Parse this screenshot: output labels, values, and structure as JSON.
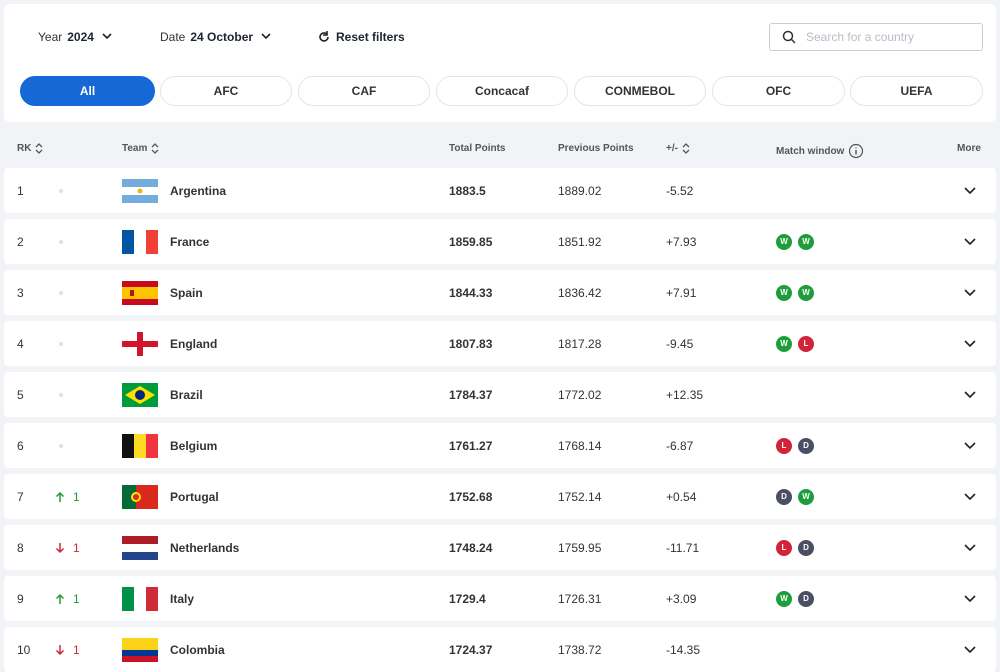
{
  "filters": {
    "year_label": "Year",
    "year": "2024",
    "date_label": "Date",
    "date": "24 October",
    "reset": "Reset filters",
    "search_placeholder": "Search for a country"
  },
  "tabs": [
    "All",
    "AFC",
    "CAF",
    "Concacaf",
    "CONMEBOL",
    "OFC",
    "UEFA"
  ],
  "table": {
    "columns": [
      "RK",
      "Team",
      "Total Points",
      "Previous Points",
      "+/-",
      "Match window",
      "More"
    ],
    "rows": [
      {
        "rank": 1,
        "team": "Argentina",
        "total": 1883.5,
        "previous": 1889.02,
        "diff": "-5.52",
        "matches": []
      },
      {
        "rank": 2,
        "team": "France",
        "total": 1859.85,
        "previous": 1851.92,
        "diff": "+7.93",
        "matches": [
          "W",
          "W"
        ]
      },
      {
        "rank": 3,
        "team": "Spain",
        "total": 1844.33,
        "previous": 1836.42,
        "diff": "+7.91",
        "matches": [
          "W",
          "W"
        ]
      },
      {
        "rank": 4,
        "team": "England",
        "total": 1807.83,
        "previous": 1817.28,
        "diff": "-9.45",
        "matches": [
          "W",
          "L"
        ]
      },
      {
        "rank": 5,
        "team": "Brazil",
        "total": 1784.37,
        "previous": 1772.02,
        "diff": "+12.35",
        "matches": []
      },
      {
        "rank": 6,
        "team": "Belgium",
        "total": 1761.27,
        "previous": 1768.14,
        "diff": "-6.87",
        "matches": [
          "L",
          "D"
        ]
      },
      {
        "rank": 7,
        "move": 1,
        "trend": "up",
        "team": "Portugal",
        "total": 1752.68,
        "previous": 1752.14,
        "diff": "+0.54",
        "matches": [
          "D",
          "W"
        ]
      },
      {
        "rank": 8,
        "move": 1,
        "trend": "down",
        "team": "Netherlands",
        "total": 1748.24,
        "previous": 1759.95,
        "diff": "-11.71",
        "matches": [
          "L",
          "D"
        ]
      },
      {
        "rank": 9,
        "move": 1,
        "trend": "up",
        "team": "Italy",
        "total": 1729.4,
        "previous": 1726.31,
        "diff": "+3.09",
        "matches": [
          "W",
          "D"
        ]
      },
      {
        "rank": 10,
        "move": 1,
        "trend": "down",
        "team": "Colombia",
        "total": 1724.37,
        "previous": 1738.72,
        "diff": "-14.35",
        "matches": []
      }
    ]
  }
}
